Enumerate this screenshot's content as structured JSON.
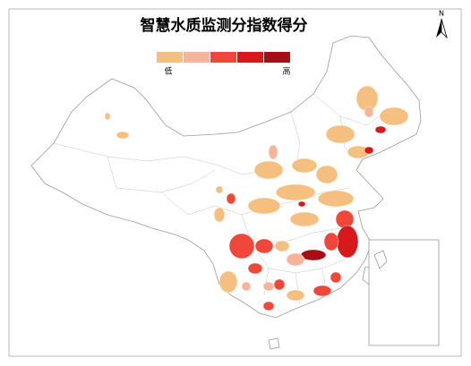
{
  "title": "智慧水质监测分指数得分",
  "legend": {
    "low_label": "低",
    "high_label": "高",
    "colors": [
      "#f5c07f",
      "#f7b49a",
      "#f0473a",
      "#d7191c",
      "#a50f15"
    ]
  },
  "north_label": "N"
}
